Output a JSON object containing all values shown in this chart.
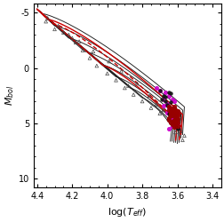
{
  "xlabel": "log(T_{eff})",
  "ylabel": "M_{bol}",
  "xlim": [
    4.42,
    3.35
  ],
  "ylim": [
    10.8,
    -5.8
  ],
  "x_ticks": [
    4.4,
    4.2,
    4.0,
    3.8,
    3.6,
    3.4
  ],
  "y_ticks": [
    -5,
    0,
    5,
    10
  ],
  "isochrone_color": "#1a1a1a",
  "red_solid_color": "#cc0000",
  "red_dashed_color": "#cc0000",
  "triangle_color": "#444444",
  "magenta_color": "#cc00cc",
  "dark_red_color": "#990000",
  "black_dot_color": "#111111",
  "figsize": [
    2.53,
    2.5
  ],
  "dpi": 100,
  "black_tracks": [
    {
      "to_logT": 4.37,
      "to_M": -4.9,
      "gb_logT": 3.56,
      "gb_M": 3.5,
      "hook_dlogT": 0.01,
      "hook_dM": 2.5
    },
    {
      "to_logT": 4.3,
      "to_M": -3.8,
      "gb_logT": 3.57,
      "gb_M": 3.8,
      "hook_dlogT": 0.01,
      "hook_dM": 2.5
    },
    {
      "to_logT": 4.22,
      "to_M": -2.7,
      "gb_logT": 3.58,
      "gb_M": 4.0,
      "hook_dlogT": 0.01,
      "hook_dM": 2.5
    },
    {
      "to_logT": 4.13,
      "to_M": -1.5,
      "gb_logT": 3.58,
      "gb_M": 4.2,
      "hook_dlogT": 0.01,
      "hook_dM": 2.5
    },
    {
      "to_logT": 4.03,
      "to_M": -0.3,
      "gb_logT": 3.59,
      "gb_M": 4.5,
      "hook_dlogT": 0.01,
      "hook_dM": 2.3
    },
    {
      "to_logT": 3.95,
      "to_M": 0.8,
      "gb_logT": 3.6,
      "gb_M": 4.7,
      "hook_dlogT": 0.01,
      "hook_dM": 2.0
    },
    {
      "to_logT": 3.87,
      "to_M": 1.8,
      "gb_logT": 3.61,
      "gb_M": 4.9,
      "hook_dlogT": 0.01,
      "hook_dM": 1.8
    },
    {
      "to_logT": 3.8,
      "to_M": 2.7,
      "gb_logT": 3.62,
      "gb_M": 5.1,
      "hook_dlogT": 0.01,
      "hook_dM": 1.5
    },
    {
      "to_logT": 3.74,
      "to_M": 3.4,
      "gb_logT": 3.63,
      "gb_M": 5.3,
      "hook_dlogT": 0.01,
      "hook_dM": 1.3
    }
  ],
  "red_solid_tracks": [
    {
      "to_logT": 4.34,
      "to_M": -4.4,
      "gb_logT": 3.57,
      "gb_M": 4.2,
      "hook_dlogT": 0.01,
      "hook_dM": 1.8
    },
    {
      "to_logT": 4.02,
      "to_M": -0.2,
      "gb_logT": 3.6,
      "gb_M": 5.0,
      "hook_dlogT": 0.01,
      "hook_dM": 1.5
    }
  ],
  "red_dashed_track": {
    "to_logT": 4.31,
    "to_M": -4.0,
    "gb_logT": 3.58,
    "gb_M": 5.2,
    "hook_dlogT": 0.01,
    "hook_dM": 1.3
  },
  "ms_hot_logT": 4.4,
  "ms_hot_M": -5.3,
  "triangles": {
    "x": [
      4.34,
      4.28,
      4.22,
      4.18,
      4.14,
      4.1,
      4.06,
      4.0,
      3.95,
      3.9,
      3.85,
      3.8,
      3.75,
      3.7,
      3.65,
      3.62,
      3.6,
      3.58,
      3.56,
      4.35,
      4.25,
      4.16,
      4.08,
      3.99,
      3.92,
      3.83,
      3.76,
      3.68,
      3.63,
      3.57,
      4.3,
      4.2,
      3.88,
      3.72,
      3.61
    ],
    "y": [
      -4.5,
      -3.8,
      -3.0,
      -2.3,
      -1.6,
      -0.9,
      -0.2,
      0.5,
      1.1,
      1.8,
      2.4,
      3.0,
      3.6,
      4.1,
      4.6,
      5.0,
      5.3,
      5.7,
      6.1,
      -4.2,
      -3.2,
      -2.4,
      -1.5,
      -0.6,
      0.3,
      1.4,
      2.5,
      3.8,
      5.2,
      6.5,
      -3.5,
      -2.7,
      1.6,
      3.3,
      5.8
    ]
  },
  "magenta_dots": {
    "x": [
      3.68,
      3.66,
      3.65,
      3.64,
      3.63,
      3.62,
      3.61,
      3.6,
      3.65,
      3.67,
      3.7,
      3.72,
      3.64,
      3.63,
      3.65,
      3.66,
      3.68,
      3.62,
      3.6,
      3.63
    ],
    "y": [
      2.8,
      3.2,
      3.6,
      3.9,
      4.2,
      4.5,
      4.8,
      5.0,
      2.5,
      2.2,
      2.0,
      1.8,
      4.6,
      5.2,
      5.5,
      4.0,
      3.4,
      3.0,
      4.0,
      2.8
    ]
  },
  "dark_red_dots": {
    "x": [
      3.64,
      3.63,
      3.62,
      3.61,
      3.6,
      3.65,
      3.63,
      3.62,
      3.64,
      3.6,
      3.61,
      3.63,
      3.65,
      3.62,
      3.6,
      3.61,
      3.64,
      3.62,
      3.63,
      3.6,
      3.61,
      3.63,
      3.65,
      3.64,
      3.62,
      3.6,
      3.61,
      3.63,
      3.65,
      3.62,
      3.6,
      3.61,
      3.64,
      3.62,
      3.63
    ],
    "y": [
      3.8,
      4.0,
      4.2,
      4.4,
      4.6,
      3.5,
      4.8,
      5.0,
      4.3,
      5.2,
      3.9,
      4.1,
      4.5,
      4.7,
      4.9,
      4.0,
      4.2,
      3.7,
      5.1,
      4.3,
      4.6,
      4.0,
      3.8,
      4.9,
      5.3,
      4.1,
      4.4,
      3.6,
      4.7,
      5.0,
      3.9,
      4.8,
      4.1,
      3.5,
      4.3
    ]
  },
  "black_dots": {
    "x": [
      3.67,
      3.65,
      3.63,
      3.61,
      3.69,
      3.66,
      3.64,
      3.62,
      3.68,
      3.65,
      3.63,
      3.6,
      3.7,
      3.67,
      3.64,
      3.62,
      3.65,
      3.63,
      3.61,
      3.64
    ],
    "y": [
      3.0,
      3.5,
      4.0,
      4.5,
      2.8,
      3.3,
      3.8,
      4.3,
      2.5,
      2.2,
      5.0,
      5.5,
      2.0,
      2.6,
      3.1,
      3.6,
      4.1,
      4.8,
      5.3,
      2.3
    ]
  }
}
